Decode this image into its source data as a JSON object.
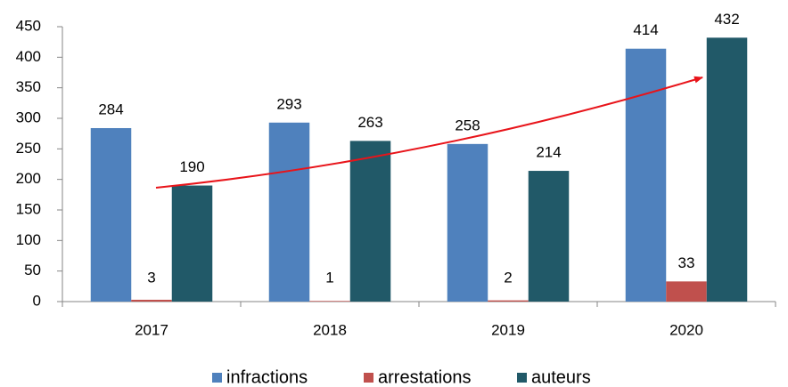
{
  "chart_data": {
    "type": "bar",
    "categories": [
      "2017",
      "2018",
      "2019",
      "2020"
    ],
    "series": [
      {
        "name": "infractions",
        "color": "#4f81bd",
        "values": [
          284,
          293,
          258,
          414
        ]
      },
      {
        "name": "arrestations",
        "color": "#c0504d",
        "values": [
          3,
          1,
          2,
          33
        ]
      },
      {
        "name": "auteurs",
        "color": "#215968",
        "values": [
          190,
          263,
          214,
          432
        ]
      }
    ],
    "ylim": [
      0,
      450
    ],
    "yticks": [
      0,
      50,
      100,
      150,
      200,
      250,
      300,
      350,
      400,
      450
    ],
    "grid": false,
    "legend": "bottom"
  }
}
